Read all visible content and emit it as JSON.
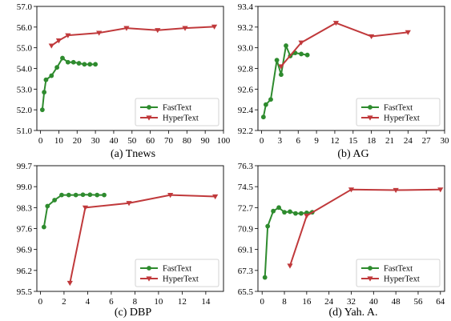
{
  "chart_data": [
    {
      "type": "line",
      "caption": "(a) Tnews",
      "xlim": [
        -2,
        100
      ],
      "ylim": [
        51.0,
        57.0
      ],
      "xticks": [
        "0",
        "10",
        "20",
        "30",
        "40",
        "50",
        "60",
        "70",
        "80",
        "90",
        "100"
      ],
      "yticks": [
        "51.0",
        "52.0",
        "53.0",
        "54.0",
        "55.0",
        "56.0",
        "57.0"
      ],
      "legend_position": "lower-right",
      "series": [
        {
          "name": "FastText",
          "color": "#2e8b2e",
          "marker": "circle",
          "x": [
            1,
            2,
            3,
            6,
            9,
            12,
            15,
            18,
            21,
            24,
            27,
            30
          ],
          "y": [
            52.0,
            52.85,
            53.45,
            53.65,
            54.05,
            54.5,
            54.3,
            54.3,
            54.25,
            54.2,
            54.2,
            54.2
          ]
        },
        {
          "name": "HyperText",
          "color": "#c0393b",
          "marker": "triangle-down",
          "x": [
            6,
            10,
            15,
            32,
            47,
            64,
            79,
            95
          ],
          "y": [
            55.1,
            55.35,
            55.6,
            55.72,
            55.95,
            55.85,
            55.95,
            56.02
          ]
        }
      ]
    },
    {
      "type": "line",
      "caption": "(b) AG",
      "xlim": [
        -0.6,
        30
      ],
      "ylim": [
        92.2,
        93.4
      ],
      "xticks": [
        "0",
        "3",
        "6",
        "9",
        "12",
        "15",
        "18",
        "21",
        "24",
        "27",
        "30"
      ],
      "yticks": [
        "92.2",
        "92.4",
        "92.6",
        "92.8",
        "93.0",
        "93.2",
        "93.4"
      ],
      "legend_position": "lower-right",
      "series": [
        {
          "name": "FastText",
          "color": "#2e8b2e",
          "marker": "circle",
          "x": [
            0.3,
            0.7,
            1.5,
            2.5,
            3.2,
            4.0,
            4.7,
            5.5,
            6.5,
            7.5
          ],
          "y": [
            92.33,
            92.45,
            92.5,
            92.88,
            92.74,
            93.02,
            92.92,
            92.95,
            92.94,
            92.93
          ]
        },
        {
          "name": "HyperText",
          "color": "#c0393b",
          "marker": "triangle-down",
          "x": [
            3.2,
            6.5,
            12.2,
            18.0,
            24.0
          ],
          "y": [
            92.82,
            93.05,
            93.24,
            93.11,
            93.15
          ]
        }
      ]
    },
    {
      "type": "line",
      "caption": "(c) DBP",
      "xlim": [
        -0.3,
        15.5
      ],
      "ylim": [
        95.5,
        99.7
      ],
      "xticks": [
        "0",
        "2",
        "4",
        "6",
        "8",
        "10",
        "12",
        "14"
      ],
      "yticks": [
        "95.5",
        "96.2",
        "96.9",
        "97.6",
        "98.3",
        "99.0",
        "99.7"
      ],
      "legend_position": "lower-right",
      "series": [
        {
          "name": "FastText",
          "color": "#2e8b2e",
          "marker": "circle",
          "x": [
            0.3,
            0.6,
            1.2,
            1.8,
            2.4,
            3.0,
            3.6,
            4.2,
            4.8,
            5.4
          ],
          "y": [
            97.65,
            98.35,
            98.55,
            98.72,
            98.72,
            98.72,
            98.73,
            98.73,
            98.72,
            98.72
          ]
        },
        {
          "name": "HyperText",
          "color": "#c0393b",
          "marker": "triangle-down",
          "x": [
            2.5,
            3.8,
            7.5,
            11.0,
            14.8
          ],
          "y": [
            95.78,
            98.3,
            98.45,
            98.72,
            98.67
          ]
        }
      ]
    },
    {
      "type": "line",
      "caption": "(d) Yah. A.",
      "xlim": [
        -1.5,
        65.5
      ],
      "ylim": [
        65.5,
        76.3
      ],
      "xticks": [
        "0",
        "8",
        "16",
        "24",
        "32",
        "40",
        "48",
        "56",
        "64"
      ],
      "yticks": [
        "65.5",
        "67.3",
        "69.1",
        "70.9",
        "72.7",
        "74.5",
        "76.3"
      ],
      "legend_position": "lower-right",
      "series": [
        {
          "name": "FastText",
          "color": "#2e8b2e",
          "marker": "circle",
          "x": [
            1,
            2,
            4,
            6,
            8,
            10,
            12,
            14,
            16,
            18
          ],
          "y": [
            66.7,
            71.1,
            72.4,
            72.7,
            72.3,
            72.35,
            72.2,
            72.2,
            72.25,
            72.3
          ]
        },
        {
          "name": "HyperText",
          "color": "#c0393b",
          "marker": "triangle-down",
          "x": [
            10,
            16,
            32,
            48,
            64
          ],
          "y": [
            67.7,
            72.0,
            74.25,
            74.2,
            74.25
          ]
        }
      ]
    }
  ]
}
